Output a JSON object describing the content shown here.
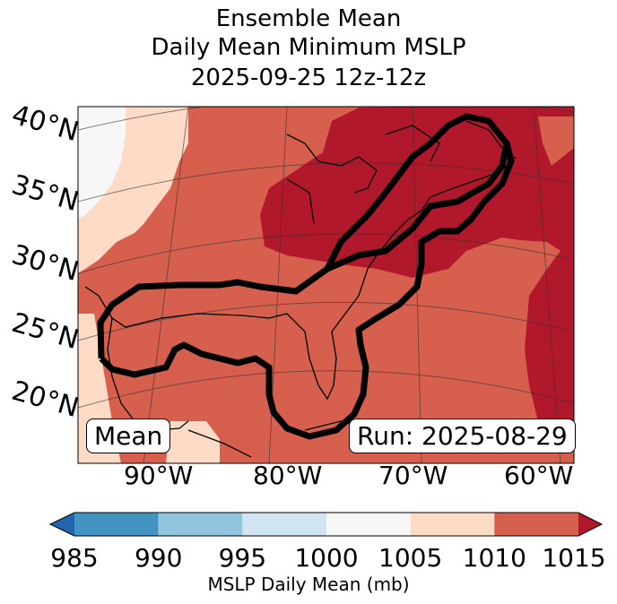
{
  "title": {
    "line1": "Ensemble Mean",
    "line2": "Daily Mean Minimum MSLP",
    "line3": "2025-09-25 12z-12z"
  },
  "map": {
    "lat_labels": [
      "40°N",
      "35°N",
      "30°N",
      "25°N",
      "20°N"
    ],
    "lon_labels": [
      "90°W",
      "80°W",
      "70°W",
      "60°W"
    ],
    "left_box": "Mean",
    "right_box": "Run: 2025-08-29",
    "fill_colors": {
      "c1000": "#f7f7f7",
      "c1005": "#fddbc7",
      "c1010": "#d6604d",
      "c1015": "#b2182b"
    }
  },
  "colorbar": {
    "ticks": [
      "985",
      "990",
      "995",
      "1000",
      "1005",
      "1010",
      "1015"
    ],
    "label": "MSLP Daily Mean (mb)",
    "colors": [
      "#2166ac",
      "#4393c3",
      "#92c5de",
      "#d1e5f0",
      "#f7f7f7",
      "#fddbc7",
      "#d6604d",
      "#b2182b"
    ]
  }
}
